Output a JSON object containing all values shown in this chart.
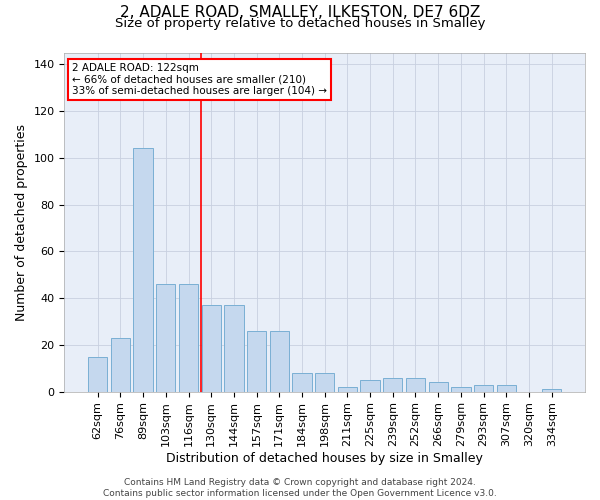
{
  "title": "2, ADALE ROAD, SMALLEY, ILKESTON, DE7 6DZ",
  "subtitle": "Size of property relative to detached houses in Smalley",
  "xlabel": "Distribution of detached houses by size in Smalley",
  "ylabel": "Number of detached properties",
  "categories": [
    "62sqm",
    "76sqm",
    "89sqm",
    "103sqm",
    "116sqm",
    "130sqm",
    "144sqm",
    "157sqm",
    "171sqm",
    "184sqm",
    "198sqm",
    "211sqm",
    "225sqm",
    "239sqm",
    "252sqm",
    "266sqm",
    "279sqm",
    "293sqm",
    "307sqm",
    "320sqm",
    "334sqm"
  ],
  "values": [
    15,
    23,
    104,
    46,
    46,
    37,
    37,
    26,
    26,
    8,
    8,
    2,
    5,
    6,
    6,
    4,
    2,
    3,
    3,
    0,
    1
  ],
  "bar_color": "#c5d8ee",
  "bar_edge_color": "#7aafd4",
  "grid_color": "#c8d0e0",
  "bg_color": "#e8eef8",
  "annotation_text": "2 ADALE ROAD: 122sqm\n← 66% of detached houses are smaller (210)\n33% of semi-detached houses are larger (104) →",
  "vline_x_index": 4.57,
  "vline_color": "red",
  "annotation_box_color": "white",
  "annotation_box_edge": "red",
  "ylim": [
    0,
    145
  ],
  "yticks": [
    0,
    20,
    40,
    60,
    80,
    100,
    120,
    140
  ],
  "footer": "Contains HM Land Registry data © Crown copyright and database right 2024.\nContains public sector information licensed under the Open Government Licence v3.0.",
  "title_fontsize": 11,
  "subtitle_fontsize": 9.5,
  "xlabel_fontsize": 9,
  "ylabel_fontsize": 9,
  "tick_fontsize": 8,
  "footer_fontsize": 6.5
}
